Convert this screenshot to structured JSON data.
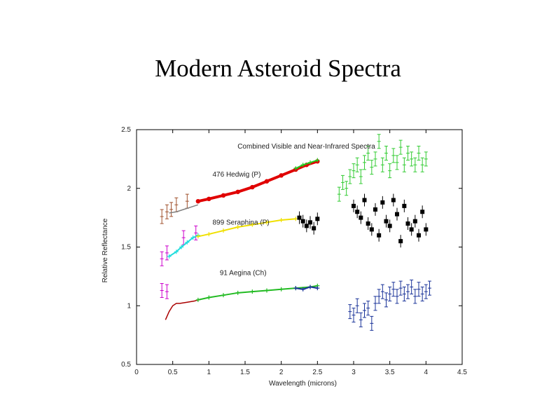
{
  "slide": {
    "title": "Modern Asteroid Spectra"
  },
  "chart_data": {
    "type": "scatter",
    "title": "Combined Visible and Near-Infrared Spectra",
    "xlabel": "Wavelength (microns)",
    "ylabel": "Relative Reflectance",
    "xlim": [
      0,
      4.5
    ],
    "ylim": [
      0.5,
      2.5
    ],
    "x_ticks": [
      0,
      0.5,
      1,
      1.5,
      2,
      2.5,
      3,
      3.5,
      4,
      4.5
    ],
    "x_tick_labels": [
      "0",
      "0.5",
      "1",
      "1.5",
      "2",
      "2.5",
      "3",
      "3.5",
      "4",
      "4.5"
    ],
    "y_ticks": [
      0.5,
      1,
      1.5,
      2,
      2.5
    ],
    "y_tick_labels": [
      "0.5",
      "1",
      "1.5",
      "2",
      "2.5"
    ],
    "grid": false,
    "annotations": [
      {
        "text": "476 Hedwig (P)",
        "x": 1.05,
        "y": 2.1
      },
      {
        "text": "899 Seraphina (P)",
        "x": 1.05,
        "y": 1.69
      },
      {
        "text": "91 Aegina (Ch)",
        "x": 1.15,
        "y": 1.26
      }
    ],
    "series": [
      {
        "color": "#a0522d",
        "marker": "errorbar",
        "x": [
          0.35,
          0.42,
          0.48,
          0.55,
          0.7
        ],
        "y": [
          1.76,
          1.8,
          1.82,
          1.86,
          1.89
        ]
      },
      {
        "color": "#808080",
        "marker": "line",
        "x": [
          0.45,
          0.55,
          0.65,
          0.75,
          0.85
        ],
        "y": [
          1.79,
          1.8,
          1.82,
          1.84,
          1.86
        ]
      },
      {
        "color": "#e00000",
        "marker": "dot",
        "x": [
          0.85,
          1.0,
          1.2,
          1.4,
          1.6,
          1.8,
          2.0,
          2.2,
          2.35,
          2.5
        ],
        "y": [
          1.89,
          1.91,
          1.94,
          1.97,
          2.01,
          2.06,
          2.11,
          2.16,
          2.2,
          2.23
        ]
      },
      {
        "color": "#22cc22",
        "marker": "cross",
        "x": [
          2.2,
          2.3,
          2.4,
          2.5
        ],
        "y": [
          2.17,
          2.2,
          2.22,
          2.24
        ]
      },
      {
        "color": "#33cc33",
        "marker": "errorbar",
        "x": [
          2.8,
          2.85,
          2.9,
          2.95,
          3.0,
          3.05,
          3.1,
          3.15,
          3.2,
          3.25,
          3.3,
          3.35,
          3.4,
          3.45,
          3.5,
          3.55,
          3.6,
          3.65,
          3.7,
          3.75,
          3.8,
          3.85,
          3.9,
          3.95,
          4.0
        ],
        "y": [
          1.95,
          2.05,
          2.0,
          2.1,
          2.15,
          2.2,
          2.1,
          2.22,
          2.3,
          2.18,
          2.25,
          2.4,
          2.2,
          2.3,
          2.15,
          2.28,
          2.22,
          2.35,
          2.2,
          2.3,
          2.25,
          2.2,
          2.3,
          2.2,
          2.25
        ]
      },
      {
        "color": "#cc00cc",
        "marker": "errorbar",
        "x": [
          0.35,
          0.42,
          0.65,
          0.82
        ],
        "y": [
          1.4,
          1.45,
          1.58,
          1.62
        ]
      },
      {
        "color": "#22dddd",
        "marker": "cross",
        "x": [
          0.45,
          0.55,
          0.62,
          0.7,
          0.78,
          0.85
        ],
        "y": [
          1.42,
          1.46,
          1.5,
          1.54,
          1.58,
          1.6
        ]
      },
      {
        "color": "#f0e000",
        "marker": "cross",
        "x": [
          0.85,
          1.0,
          1.2,
          1.4,
          1.6,
          1.8,
          2.0,
          2.2
        ],
        "y": [
          1.59,
          1.61,
          1.64,
          1.67,
          1.69,
          1.71,
          1.73,
          1.74
        ]
      },
      {
        "color": "#000000",
        "marker": "square",
        "x": [
          2.25,
          2.3,
          2.35,
          2.4,
          2.45,
          2.5,
          3.0,
          3.05,
          3.1,
          3.15,
          3.2,
          3.25,
          3.3,
          3.35,
          3.4,
          3.45,
          3.5,
          3.55,
          3.6,
          3.65,
          3.7,
          3.75,
          3.8,
          3.85,
          3.9,
          3.95,
          4.0
        ],
        "y": [
          1.75,
          1.72,
          1.68,
          1.71,
          1.66,
          1.74,
          1.85,
          1.8,
          1.75,
          1.9,
          1.7,
          1.65,
          1.82,
          1.6,
          1.88,
          1.72,
          1.68,
          1.9,
          1.78,
          1.55,
          1.85,
          1.7,
          1.65,
          1.72,
          1.6,
          1.8,
          1.65
        ]
      },
      {
        "color": "#aa0000",
        "marker": "line",
        "x": [
          0.4,
          0.45,
          0.5,
          0.55,
          0.6,
          0.7,
          0.8,
          0.85
        ],
        "y": [
          0.88,
          0.95,
          1.0,
          1.02,
          1.02,
          1.03,
          1.04,
          1.05
        ]
      },
      {
        "color": "#22bb22",
        "marker": "cross",
        "x": [
          0.85,
          1.0,
          1.2,
          1.4,
          1.6,
          1.8,
          2.0,
          2.2,
          2.4,
          2.5
        ],
        "y": [
          1.05,
          1.07,
          1.09,
          1.11,
          1.12,
          1.13,
          1.14,
          1.15,
          1.16,
          1.17
        ]
      },
      {
        "color": "#cc00cc",
        "marker": "errorbar",
        "x": [
          0.35,
          0.42
        ],
        "y": [
          1.13,
          1.12
        ]
      },
      {
        "color": "#1a3399",
        "marker": "cross",
        "x": [
          2.2,
          2.3,
          2.4,
          2.5
        ],
        "y": [
          1.15,
          1.14,
          1.16,
          1.15
        ]
      },
      {
        "color": "#1a3399",
        "marker": "errorbar",
        "x": [
          2.95,
          3.0,
          3.05,
          3.1,
          3.15,
          3.2,
          3.25,
          3.3,
          3.35,
          3.4,
          3.45,
          3.5,
          3.55,
          3.6,
          3.65,
          3.7,
          3.75,
          3.8,
          3.85,
          3.9,
          3.95,
          4.0,
          4.05
        ],
        "y": [
          0.95,
          0.92,
          1.0,
          0.88,
          0.96,
          0.98,
          0.85,
          1.02,
          1.08,
          1.12,
          1.05,
          1.1,
          1.14,
          1.08,
          1.15,
          1.1,
          1.12,
          1.16,
          1.08,
          1.14,
          1.1,
          1.12,
          1.15
        ]
      }
    ]
  }
}
